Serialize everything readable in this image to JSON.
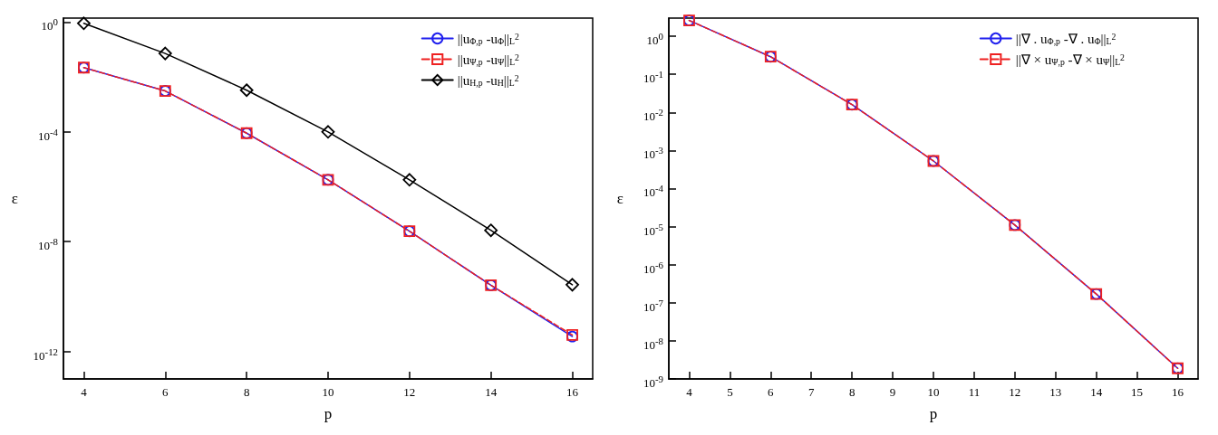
{
  "chart_data": [
    {
      "type": "line",
      "xlabel": "p",
      "ylabel": "ε",
      "log": "y",
      "legend": "top right",
      "x": [
        4,
        6,
        8,
        10,
        12,
        14,
        16
      ],
      "xlim": [
        3.5,
        16.5
      ],
      "xticks": [
        4,
        6,
        8,
        10,
        12,
        14,
        16
      ],
      "ylim": [
        1e-13,
        1.4
      ],
      "yticks": [
        {
          "value": 1,
          "label": "10$^{0}$"
        },
        {
          "value": 0.0001,
          "label": "10$^{-4}$"
        },
        {
          "value": 1e-08,
          "label": "10$^{-8}$"
        },
        {
          "value": 1e-12,
          "label": "10$^{-12}$"
        }
      ],
      "series": [
        {
          "name": "||u$_{Φ,p}$ -u$_{Φ}$||$_{L}$$^{2}$",
          "color": "#2020ee",
          "marker": "circle",
          "line_style": "solid",
          "values": [
            0.022,
            0.0031,
            9e-05,
            1.8e-06,
            2.4e-08,
            2.6e-10,
            3.5e-12
          ]
        },
        {
          "name": "||u$_{Ψ,p}$ -u$_{Ψ}$||$_{L}$$^{2}$",
          "color": "#ee2020",
          "marker": "square",
          "line_style": "dashed",
          "values": [
            0.022,
            0.0031,
            9e-05,
            1.8e-06,
            2.4e-08,
            2.6e-10,
            4e-12
          ]
        },
        {
          "name": "||u$_{H,p}$ -u$_{H}$||$_{L}$$^{2}$",
          "color": "#000000",
          "marker": "diamond",
          "line_style": "solid",
          "values": [
            0.9,
            0.072,
            0.0033,
            0.0001,
            1.8e-06,
            2.6e-08,
            2.7e-10
          ]
        }
      ]
    },
    {
      "type": "line",
      "xlabel": "p",
      "ylabel": "ε",
      "log": "y",
      "legend": "top right",
      "x": [
        4,
        6,
        8,
        10,
        12,
        14,
        16
      ],
      "xlim": [
        3.5,
        16.5
      ],
      "xticks": [
        4,
        5,
        6,
        7,
        8,
        9,
        10,
        11,
        12,
        13,
        14,
        15,
        16
      ],
      "ylim": [
        1e-09,
        3
      ],
      "yticks": [
        {
          "value": 1,
          "label": "10$^{0}$"
        },
        {
          "value": 0.1,
          "label": "10$^{-1}$"
        },
        {
          "value": 0.01,
          "label": "10$^{-2}$"
        },
        {
          "value": 0.001,
          "label": "10$^{-3}$"
        },
        {
          "value": 0.0001,
          "label": "10$^{-4}$"
        },
        {
          "value": 1e-05,
          "label": "10$^{-5}$"
        },
        {
          "value": 1e-06,
          "label": "10$^{-6}$"
        },
        {
          "value": 1e-07,
          "label": "10$^{-7}$"
        },
        {
          "value": 1e-08,
          "label": "10$^{-8}$"
        },
        {
          "value": 1e-09,
          "label": "10$^{-9}$"
        }
      ],
      "series": [
        {
          "name": "||∇ . u$_{Φ,p}$ -∇ . u$_{Φ}$||$_{L}$$^{2}$",
          "color": "#2020ee",
          "marker": "circle",
          "line_style": "solid",
          "values": [
            2.6,
            0.29,
            0.016,
            0.00053,
            1.1e-05,
            1.7e-07,
            1.9e-09
          ]
        },
        {
          "name": "||∇ × u$_{Ψ,p}$ -∇ × u$_{Ψ}$||$_{L}$$^{2}$",
          "color": "#ee2020",
          "marker": "square",
          "line_style": "dashed",
          "values": [
            2.6,
            0.29,
            0.016,
            0.00053,
            1.1e-05,
            1.7e-07,
            1.9e-09
          ]
        }
      ]
    }
  ]
}
